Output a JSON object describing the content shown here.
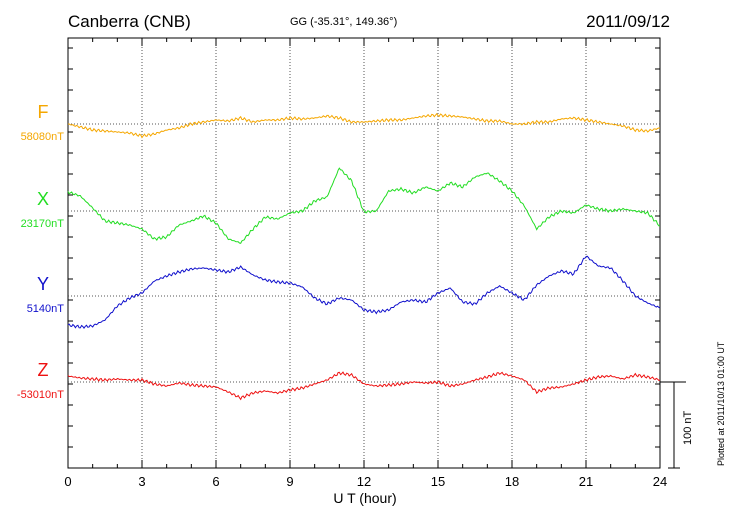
{
  "header": {
    "station": "Canberra (CNB)",
    "coords": "GG (-35.31°, 149.36°)",
    "date": "2011/09/12"
  },
  "footer": {
    "xlabel": "U T (hour)",
    "plotted": "Plotted at 2011/10/13 01:00 UT",
    "scale_label": "100 nT"
  },
  "chart_data": {
    "type": "line",
    "xlabel": "U T (hour)",
    "xlim": [
      0,
      24
    ],
    "xticks": [
      0,
      3,
      6,
      9,
      12,
      15,
      18,
      21,
      24
    ],
    "grid": true,
    "scale_bar_nT": 100,
    "series": [
      {
        "name": "F",
        "baseline_label": "58080nT",
        "baseline_nT": 58080,
        "color": "#f5a700",
        "x": [
          0,
          0.5,
          1,
          1.5,
          2,
          2.5,
          3,
          3.5,
          4,
          4.5,
          5,
          5.5,
          6,
          6.5,
          7,
          7.5,
          8,
          8.5,
          9,
          9.5,
          10,
          10.5,
          11,
          11.5,
          12,
          12.5,
          13,
          13.5,
          14,
          14.5,
          15,
          15.5,
          16,
          16.5,
          17,
          17.5,
          18,
          18.5,
          19,
          19.5,
          20,
          20.5,
          21,
          21.5,
          22,
          22.5,
          23,
          23.5,
          24
        ],
        "y": [
          0,
          -3,
          -6,
          -7,
          -8,
          -9,
          -12,
          -10,
          -6,
          -4,
          0,
          2,
          4,
          3,
          6,
          2,
          4,
          4,
          6,
          5,
          6,
          8,
          6,
          2,
          2,
          3,
          4,
          4,
          6,
          8,
          9,
          8,
          7,
          5,
          3,
          3,
          0,
          0,
          2,
          2,
          5,
          6,
          4,
          2,
          0,
          -2,
          -6,
          -7,
          -4
        ]
      },
      {
        "name": "X",
        "baseline_label": "23170nT",
        "baseline_nT": 23170,
        "color": "#22dd22",
        "x": [
          0,
          0.5,
          1,
          1.5,
          2,
          2.5,
          3,
          3.5,
          4,
          4.5,
          5,
          5.5,
          6,
          6.5,
          7,
          7.5,
          8,
          8.5,
          9,
          9.5,
          10,
          10.5,
          11,
          11.5,
          12,
          12.5,
          13,
          13.5,
          14,
          14.5,
          15,
          15.5,
          16,
          16.5,
          17,
          17.5,
          18,
          18.5,
          19,
          19.5,
          20,
          20.5,
          21,
          21.5,
          22,
          22.5,
          23,
          23.5,
          24
        ],
        "y": [
          19,
          15,
          3,
          -10,
          -12,
          -14,
          -18,
          -28,
          -26,
          -14,
          -10,
          -5,
          -12,
          -28,
          -32,
          -18,
          -6,
          -8,
          -2,
          0,
          10,
          14,
          43,
          30,
          -1,
          0,
          20,
          22,
          18,
          24,
          20,
          28,
          24,
          34,
          38,
          30,
          20,
          5,
          -18,
          -6,
          0,
          -2,
          6,
          2,
          0,
          2,
          0,
          -2,
          -15
        ]
      },
      {
        "name": "Y",
        "baseline_label": "5140nT",
        "baseline_nT": 5140,
        "color": "#1010cc",
        "x": [
          0,
          0.5,
          1,
          1.5,
          2,
          2.5,
          3,
          3.5,
          4,
          4.5,
          5,
          5.5,
          6,
          6.5,
          7,
          7.5,
          8,
          8.5,
          9,
          9.5,
          10,
          10.5,
          11,
          11.5,
          12,
          12.5,
          13,
          13.5,
          14,
          14.5,
          15,
          15.5,
          16,
          16.5,
          17,
          17.5,
          18,
          18.5,
          19,
          19.5,
          20,
          20.5,
          21,
          21.5,
          22,
          22.5,
          23,
          23.5,
          24
        ],
        "y": [
          -29,
          -31,
          -30,
          -24,
          -10,
          -2,
          3,
          15,
          20,
          24,
          27,
          28,
          26,
          24,
          29,
          21,
          16,
          14,
          13,
          9,
          -2,
          -8,
          -2,
          -4,
          -14,
          -16,
          -14,
          -6,
          -4,
          -6,
          3,
          8,
          -6,
          -8,
          3,
          10,
          3,
          -4,
          11,
          20,
          25,
          22,
          40,
          30,
          28,
          15,
          0,
          -7,
          -12
        ]
      },
      {
        "name": "Z",
        "baseline_label": "-53010nT",
        "baseline_nT": -53010,
        "color": "#ee1111",
        "x": [
          0,
          0.5,
          1,
          1.5,
          2,
          2.5,
          3,
          3.5,
          4,
          4.5,
          5,
          5.5,
          6,
          6.5,
          7,
          7.5,
          8,
          8.5,
          9,
          9.5,
          10,
          10.5,
          11,
          11.5,
          12,
          12.5,
          13,
          13.5,
          14,
          14.5,
          15,
          15.5,
          16,
          16.5,
          17,
          17.5,
          18,
          18.5,
          19,
          19.5,
          20,
          20.5,
          21,
          21.5,
          22,
          22.5,
          23,
          23.5,
          24
        ],
        "y": [
          6,
          4,
          3,
          2,
          3,
          2,
          2,
          -2,
          -4,
          -1,
          -3,
          -4,
          -5,
          -10,
          -16,
          -11,
          -9,
          -11,
          -8,
          -6,
          -2,
          2,
          9,
          7,
          -2,
          -4,
          -3,
          -2,
          0,
          -1,
          0,
          -4,
          -2,
          2,
          5,
          9,
          6,
          2,
          -10,
          -6,
          -5,
          -2,
          2,
          5,
          6,
          3,
          7,
          5,
          2
        ]
      }
    ]
  }
}
